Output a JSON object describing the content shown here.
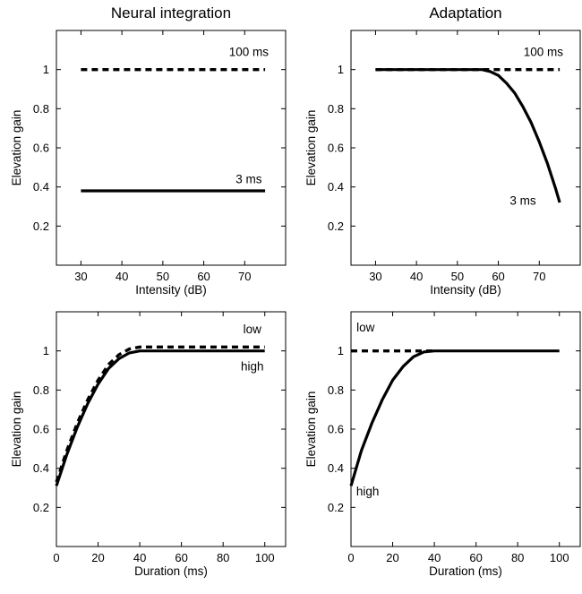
{
  "chart_data": [
    {
      "type": "line",
      "title": "Neural integration",
      "xlabel": "Intensity (dB)",
      "ylabel": "Elevation gain",
      "xlim": [
        24,
        80
      ],
      "ylim": [
        0,
        1.2
      ],
      "xticks": [
        "30",
        "40",
        "50",
        "60",
        "70"
      ],
      "yticks": [
        "0.2",
        "0.4",
        "0.6",
        "0.8",
        "1"
      ],
      "series": [
        {
          "name": "100 ms",
          "style": "dashed",
          "x": [
            30,
            75
          ],
          "y": [
            1.0,
            1.0
          ]
        },
        {
          "name": "3 ms",
          "style": "solid",
          "x": [
            30,
            75
          ],
          "y": [
            0.38,
            0.38
          ]
        }
      ],
      "annotations": [
        {
          "text": "100 ms",
          "x": 71,
          "y": 1.07
        },
        {
          "text": "3 ms",
          "x": 71,
          "y": 0.42
        }
      ]
    },
    {
      "type": "line",
      "title": "Adaptation",
      "xlabel": "Intensity (dB)",
      "ylabel": "Elevation gain",
      "xlim": [
        24,
        80
      ],
      "ylim": [
        0,
        1.2
      ],
      "xticks": [
        "30",
        "40",
        "50",
        "60",
        "70"
      ],
      "yticks": [
        "0.2",
        "0.4",
        "0.6",
        "0.8",
        "1"
      ],
      "series": [
        {
          "name": "100 ms",
          "style": "dashed",
          "x": [
            30,
            75
          ],
          "y": [
            1.0,
            1.0
          ]
        },
        {
          "name": "3 ms",
          "style": "solid",
          "x": [
            30,
            35,
            40,
            45,
            50,
            55,
            56,
            58,
            60,
            62,
            64,
            66,
            68,
            70,
            72,
            74,
            75
          ],
          "y": [
            1.0,
            1.0,
            1.0,
            1.0,
            1.0,
            1.0,
            1.0,
            0.99,
            0.97,
            0.93,
            0.88,
            0.81,
            0.73,
            0.63,
            0.52,
            0.39,
            0.32
          ]
        }
      ],
      "annotations": [
        {
          "text": "100 ms",
          "x": 71,
          "y": 1.07
        },
        {
          "text": "3 ms",
          "x": 66,
          "y": 0.31
        }
      ]
    },
    {
      "type": "line",
      "xlabel": "Duration (ms)",
      "ylabel": "Elevation gain",
      "xlim": [
        0,
        110
      ],
      "ylim": [
        0,
        1.2
      ],
      "xticks": [
        "0",
        "20",
        "40",
        "60",
        "80",
        "100"
      ],
      "yticks": [
        "0.2",
        "0.4",
        "0.6",
        "0.8",
        "1"
      ],
      "series": [
        {
          "name": "low",
          "style": "dashed",
          "x": [
            0,
            5,
            10,
            15,
            20,
            25,
            30,
            35,
            40,
            100
          ],
          "y": [
            0.33,
            0.49,
            0.63,
            0.75,
            0.85,
            0.93,
            0.98,
            1.01,
            1.02,
            1.02
          ]
        },
        {
          "name": "high",
          "style": "solid",
          "x": [
            0,
            5,
            10,
            15,
            20,
            25,
            30,
            35,
            40,
            100
          ],
          "y": [
            0.31,
            0.47,
            0.61,
            0.73,
            0.83,
            0.91,
            0.96,
            0.99,
            1.0,
            1.0
          ]
        }
      ],
      "annotations": [
        {
          "text": "low",
          "x": 94,
          "y": 1.09
        },
        {
          "text": "high",
          "x": 94,
          "y": 0.9
        }
      ]
    },
    {
      "type": "line",
      "xlabel": "Duration (ms)",
      "ylabel": "Elevation gain",
      "xlim": [
        0,
        110
      ],
      "ylim": [
        0,
        1.2
      ],
      "xticks": [
        "0",
        "20",
        "40",
        "60",
        "80",
        "100"
      ],
      "yticks": [
        "0.2",
        "0.4",
        "0.6",
        "0.8",
        "1"
      ],
      "series": [
        {
          "name": "low",
          "style": "dashed",
          "x": [
            0,
            40
          ],
          "y": [
            1.0,
            1.0
          ]
        },
        {
          "name": "high",
          "style": "solid",
          "x": [
            0,
            5,
            10,
            15,
            20,
            25,
            30,
            35,
            40,
            100
          ],
          "y": [
            0.31,
            0.49,
            0.63,
            0.75,
            0.85,
            0.92,
            0.97,
            0.995,
            1.0,
            1.0
          ]
        }
      ],
      "annotations": [
        {
          "text": "low",
          "x": 7,
          "y": 1.1
        },
        {
          "text": "high",
          "x": 8,
          "y": 0.26
        }
      ]
    }
  ]
}
